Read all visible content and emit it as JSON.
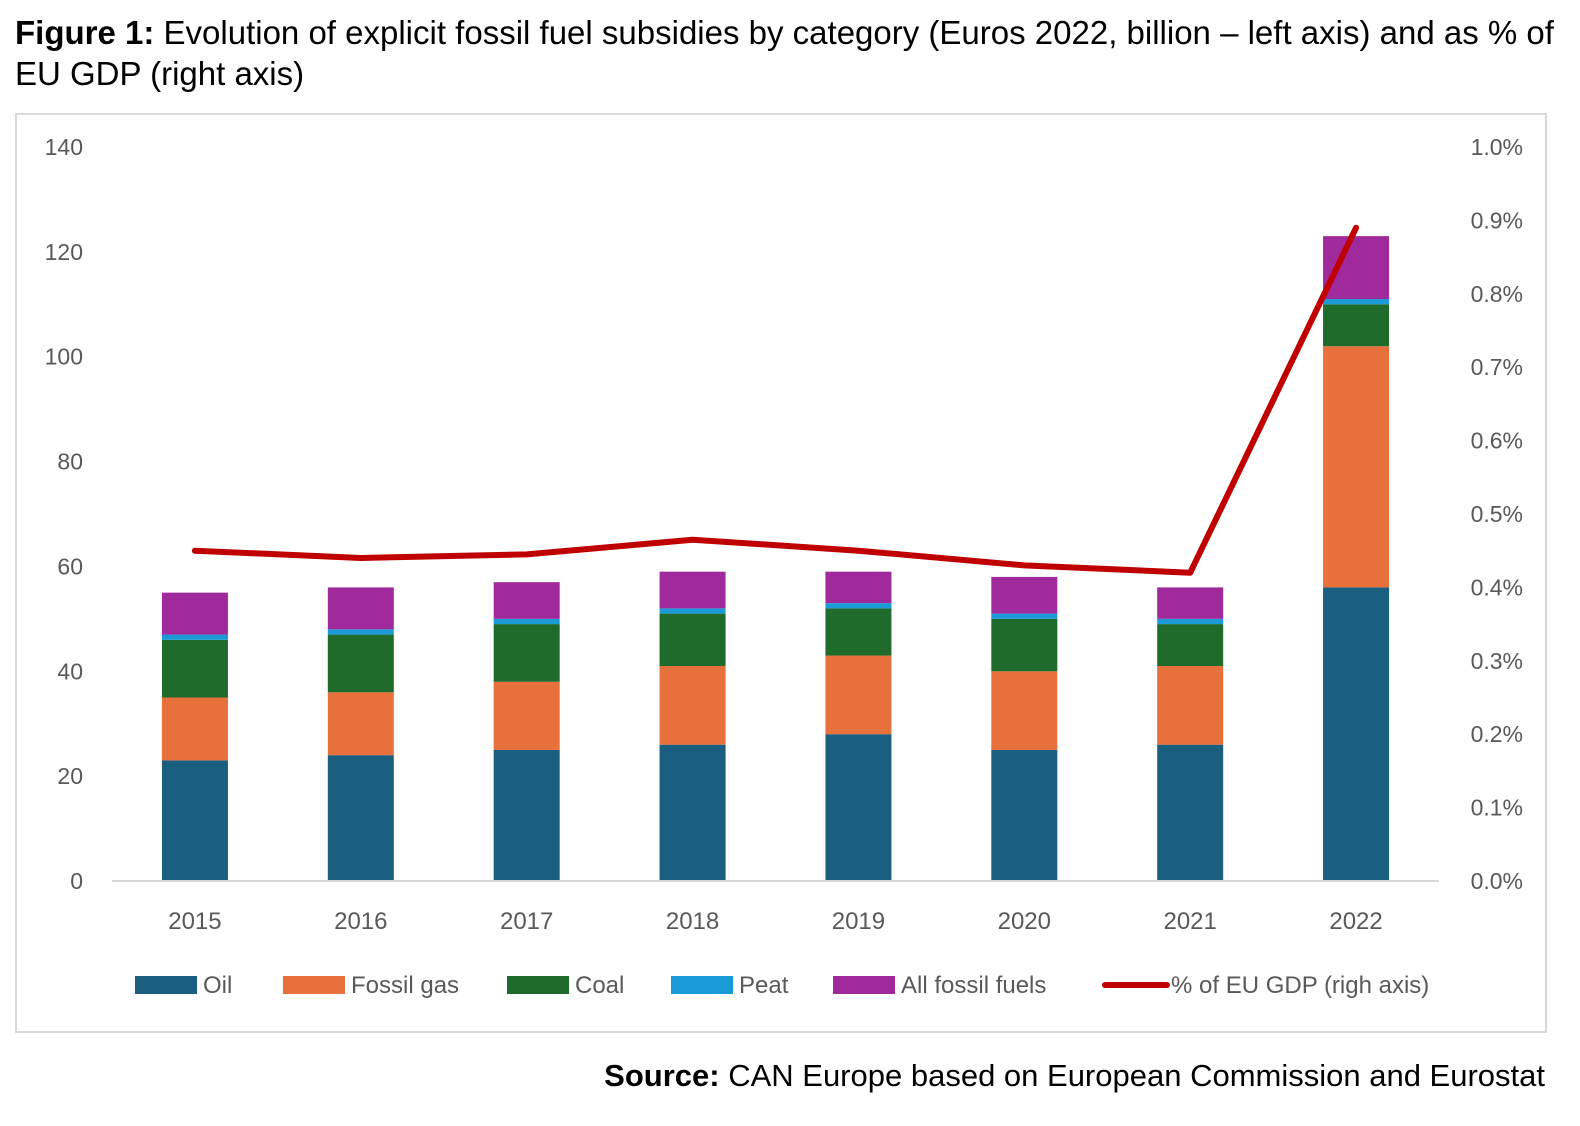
{
  "figure": {
    "label": "Figure 1:",
    "title": "Evolution of explicit fossil fuel subsidies by category (Euros 2022, billion – left axis) and as % of EU GDP (right axis)"
  },
  "source": {
    "label": "Source:",
    "text": "CAN Europe based on European Commission and Eurostat"
  },
  "chart_data": {
    "type": "bar",
    "stacked": true,
    "categories": [
      "2015",
      "2016",
      "2017",
      "2018",
      "2019",
      "2020",
      "2021",
      "2022"
    ],
    "series": [
      {
        "name": "Oil",
        "color": "#1a5e80",
        "values": [
          23,
          24,
          25,
          26,
          28,
          25,
          26,
          56
        ]
      },
      {
        "name": "Fossil gas",
        "color": "#e8703a",
        "values": [
          12,
          12,
          13,
          15,
          15,
          15,
          15,
          46
        ]
      },
      {
        "name": "Coal",
        "color": "#1e6b2c",
        "values": [
          11,
          11,
          11,
          10,
          9,
          10,
          8,
          8
        ]
      },
      {
        "name": "Peat",
        "color": "#1a9ad6",
        "values": [
          1,
          1,
          1,
          1,
          1,
          1,
          1,
          1
        ]
      },
      {
        "name": "All fossil fuels",
        "color": "#a0299c",
        "values": [
          8,
          8,
          7,
          7,
          6,
          7,
          6,
          12
        ]
      }
    ],
    "line": {
      "name": "% of EU GDP (righ axis)",
      "color": "#c00000",
      "axis": "right",
      "values": [
        0.45,
        0.44,
        0.445,
        0.465,
        0.45,
        0.43,
        0.42,
        0.89
      ]
    },
    "y_left": {
      "min": 0,
      "max": 140,
      "ticks": [
        0,
        20,
        40,
        60,
        80,
        100,
        120,
        140
      ]
    },
    "y_right": {
      "min": 0,
      "max": 1.0,
      "ticks": [
        "0.0%",
        "0.1%",
        "0.2%",
        "0.3%",
        "0.4%",
        "0.5%",
        "0.6%",
        "0.7%",
        "0.8%",
        "0.9%",
        "1.0%"
      ]
    },
    "gridlines": false,
    "legend_position": "bottom"
  }
}
